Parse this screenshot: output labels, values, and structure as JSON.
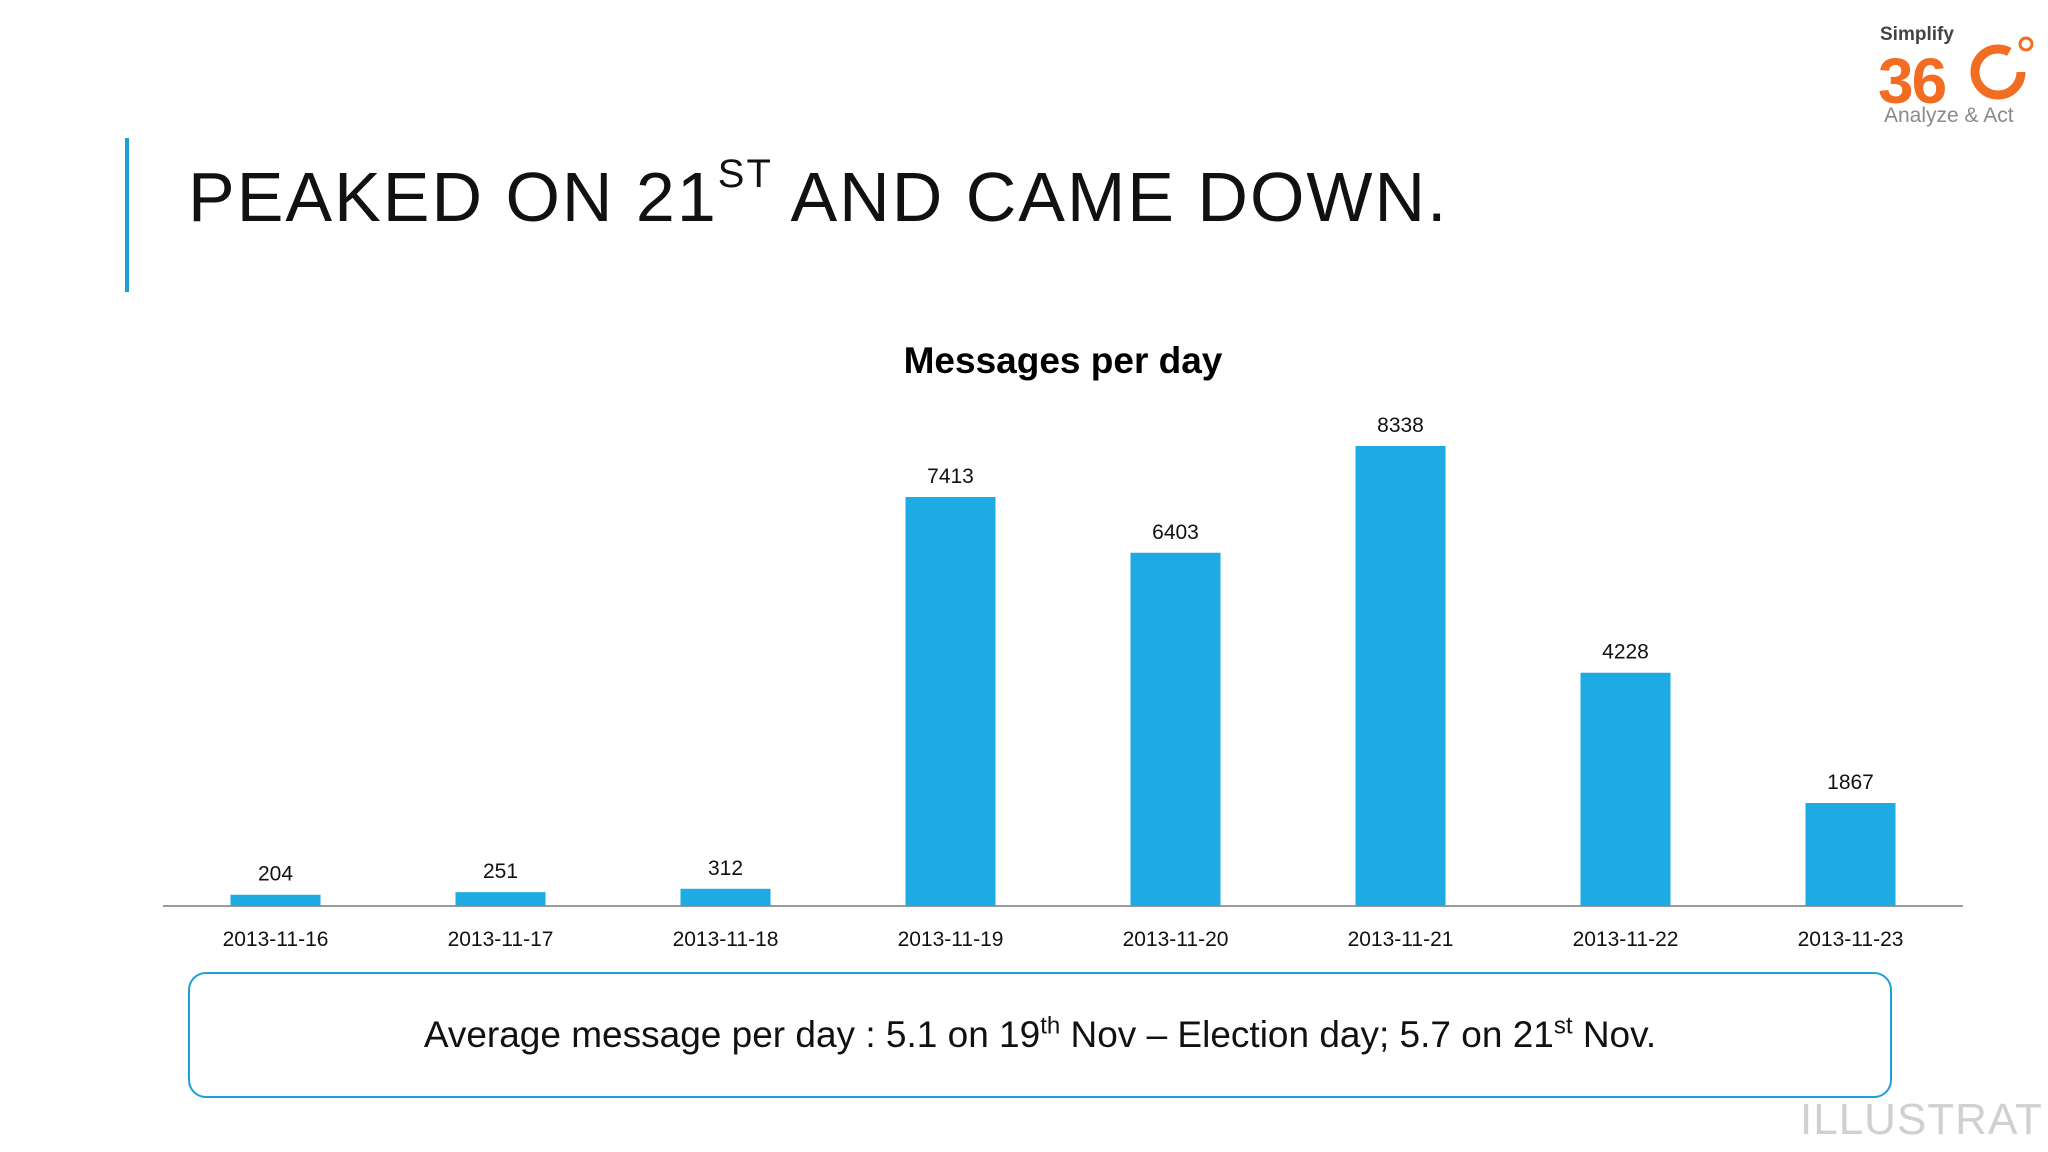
{
  "slide": {
    "title_pre": "PEAKED ON 21",
    "title_sup": "ST",
    "title_post": " AND CAME DOWN."
  },
  "logo": {
    "top_text": "Simplify",
    "number": "36",
    "bottom_text": "Analyze & Act",
    "color": "#f26c21"
  },
  "chart_data": {
    "type": "bar",
    "title": "Messages per day",
    "categories": [
      "2013-11-16",
      "2013-11-17",
      "2013-11-18",
      "2013-11-19",
      "2013-11-20",
      "2013-11-21",
      "2013-11-22",
      "2013-11-23"
    ],
    "values": [
      204,
      251,
      312,
      7413,
      6403,
      8338,
      4228,
      1867
    ],
    "data_labels": true,
    "bar_color": "#1eaae2",
    "ylim": [
      0,
      8338
    ],
    "grid": false,
    "legend": "none"
  },
  "callout": {
    "t1": "Average message per day : 5.1 on 19",
    "s1": "th",
    "t2": " Nov – Election day; 5.7 on 21",
    "s2": "st",
    "t3": " Nov."
  },
  "watermark": "ILLUSTRAT",
  "colors": {
    "accent": "#1e9fd6",
    "bar": "#1eaae2",
    "logo": "#f26c21"
  }
}
